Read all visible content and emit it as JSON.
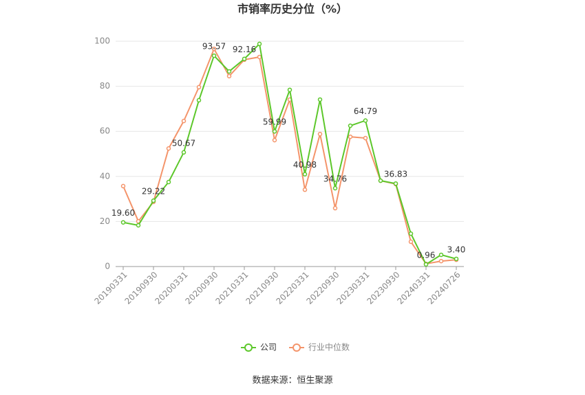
{
  "chart_data": {
    "type": "line",
    "title": "市销率历史分位（%）",
    "source": "数据来源：恒生聚源",
    "categories": [
      "20190331",
      null,
      "20190930",
      null,
      "20200331",
      null,
      "20200930",
      null,
      "20210331",
      null,
      "20210930",
      null,
      "20220331",
      null,
      "20220930",
      null,
      "20230331",
      null,
      "20230930",
      null,
      "20240331",
      null,
      "20240726"
    ],
    "series": [
      {
        "name": "公司",
        "color": "#5cc72a",
        "values": [
          19.6,
          18.3,
          29.22,
          37.5,
          50.67,
          73.8,
          93.57,
          86.6,
          92.16,
          98.8,
          59.99,
          78.4,
          40.98,
          74.1,
          34.76,
          62.5,
          64.79,
          38.1,
          36.83,
          14.6,
          0.96,
          5.2,
          3.4
        ],
        "value_labels": [
          "19.60",
          null,
          "29.22",
          null,
          "50.67",
          null,
          "93.57",
          null,
          "92.16",
          null,
          "59.99",
          null,
          "40.98",
          null,
          "34.76",
          null,
          "64.79",
          null,
          "36.83",
          null,
          "0.96",
          null,
          "3.40"
        ]
      },
      {
        "name": "行业中位数",
        "color": "#f4946a",
        "values": [
          35.7,
          20.1,
          28.7,
          52.4,
          64.6,
          79.6,
          96.6,
          84.5,
          91.8,
          93.0,
          56.1,
          74.1,
          34.1,
          58.8,
          25.9,
          57.6,
          57.0,
          38.1,
          36.6,
          11.0,
          1.2,
          2.4,
          3.0
        ]
      }
    ],
    "ylim": [
      0,
      100
    ],
    "yticks": [
      0,
      20,
      40,
      60,
      80,
      100
    ],
    "grid": true
  }
}
